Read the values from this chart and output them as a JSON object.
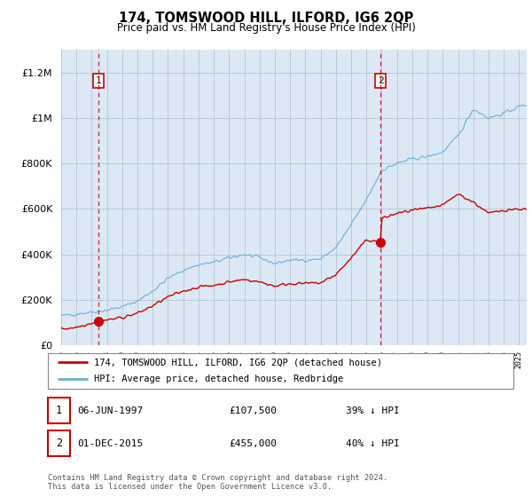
{
  "title": "174, TOMSWOOD HILL, ILFORD, IG6 2QP",
  "subtitle": "Price paid vs. HM Land Registry's House Price Index (HPI)",
  "fig_bg_color": "#ffffff",
  "plot_bg_color": "#dce9f5",
  "ylim": [
    0,
    1300000
  ],
  "yticks": [
    0,
    200000,
    400000,
    600000,
    800000,
    1000000,
    1200000
  ],
  "ytick_labels": [
    "£0",
    "£200K",
    "£400K",
    "£600K",
    "£800K",
    "£1M",
    "£1.2M"
  ],
  "sale1_date_num": 1997.44,
  "sale1_price": 107500,
  "sale1_label": "1",
  "sale2_date_num": 2015.92,
  "sale2_price": 455000,
  "sale2_label": "2",
  "hpi_line_color": "#6baed6",
  "price_line_color": "#cc0000",
  "sale_dot_color": "#cc0000",
  "dashed_line_color": "#cc0000",
  "grid_color": "#b0c4d8",
  "legend_line1": "174, TOMSWOOD HILL, ILFORD, IG6 2QP (detached house)",
  "legend_line2": "HPI: Average price, detached house, Redbridge",
  "table_row1": [
    "1",
    "06-JUN-1997",
    "£107,500",
    "39% ↓ HPI"
  ],
  "table_row2": [
    "2",
    "01-DEC-2015",
    "£455,000",
    "40% ↓ HPI"
  ],
  "footer": "Contains HM Land Registry data © Crown copyright and database right 2024.\nThis data is licensed under the Open Government Licence v3.0.",
  "xmin": 1995.0,
  "xmax": 2025.5,
  "hpi_key_points": [
    [
      1995.0,
      130000
    ],
    [
      1997.0,
      147000
    ],
    [
      1998.0,
      155000
    ],
    [
      1999.0,
      170000
    ],
    [
      2000.0,
      195000
    ],
    [
      2001.0,
      240000
    ],
    [
      2002.0,
      295000
    ],
    [
      2003.0,
      330000
    ],
    [
      2004.0,
      355000
    ],
    [
      2005.0,
      365000
    ],
    [
      2006.0,
      385000
    ],
    [
      2007.0,
      400000
    ],
    [
      2008.0,
      385000
    ],
    [
      2009.0,
      360000
    ],
    [
      2010.0,
      375000
    ],
    [
      2011.0,
      375000
    ],
    [
      2012.0,
      380000
    ],
    [
      2013.0,
      430000
    ],
    [
      2014.0,
      530000
    ],
    [
      2015.0,
      640000
    ],
    [
      2016.0,
      770000
    ],
    [
      2017.0,
      800000
    ],
    [
      2018.0,
      820000
    ],
    [
      2019.0,
      830000
    ],
    [
      2020.0,
      850000
    ],
    [
      2021.0,
      920000
    ],
    [
      2022.0,
      1040000
    ],
    [
      2023.0,
      1000000
    ],
    [
      2024.0,
      1020000
    ],
    [
      2025.0,
      1050000
    ],
    [
      2025.5,
      1060000
    ]
  ],
  "price_key_points": [
    [
      1995.0,
      72000
    ],
    [
      1996.0,
      80000
    ],
    [
      1997.44,
      107500
    ],
    [
      1998.0,
      112000
    ],
    [
      1999.0,
      123000
    ],
    [
      2000.0,
      141000
    ],
    [
      2001.0,
      174000
    ],
    [
      2002.0,
      213000
    ],
    [
      2003.0,
      239000
    ],
    [
      2004.0,
      257000
    ],
    [
      2005.0,
      264000
    ],
    [
      2006.0,
      279000
    ],
    [
      2007.0,
      290000
    ],
    [
      2008.0,
      279000
    ],
    [
      2009.0,
      261000
    ],
    [
      2010.0,
      272000
    ],
    [
      2011.0,
      272000
    ],
    [
      2012.0,
      275000
    ],
    [
      2013.0,
      311000
    ],
    [
      2014.0,
      384000
    ],
    [
      2015.0,
      464000
    ],
    [
      2015.92,
      455000
    ],
    [
      2016.0,
      558000
    ],
    [
      2017.0,
      580000
    ],
    [
      2018.0,
      594000
    ],
    [
      2019.0,
      601000
    ],
    [
      2020.0,
      616000
    ],
    [
      2021.0,
      666000
    ],
    [
      2022.0,
      630000
    ],
    [
      2023.0,
      580000
    ],
    [
      2024.0,
      595000
    ],
    [
      2025.0,
      600000
    ],
    [
      2025.5,
      598000
    ]
  ]
}
